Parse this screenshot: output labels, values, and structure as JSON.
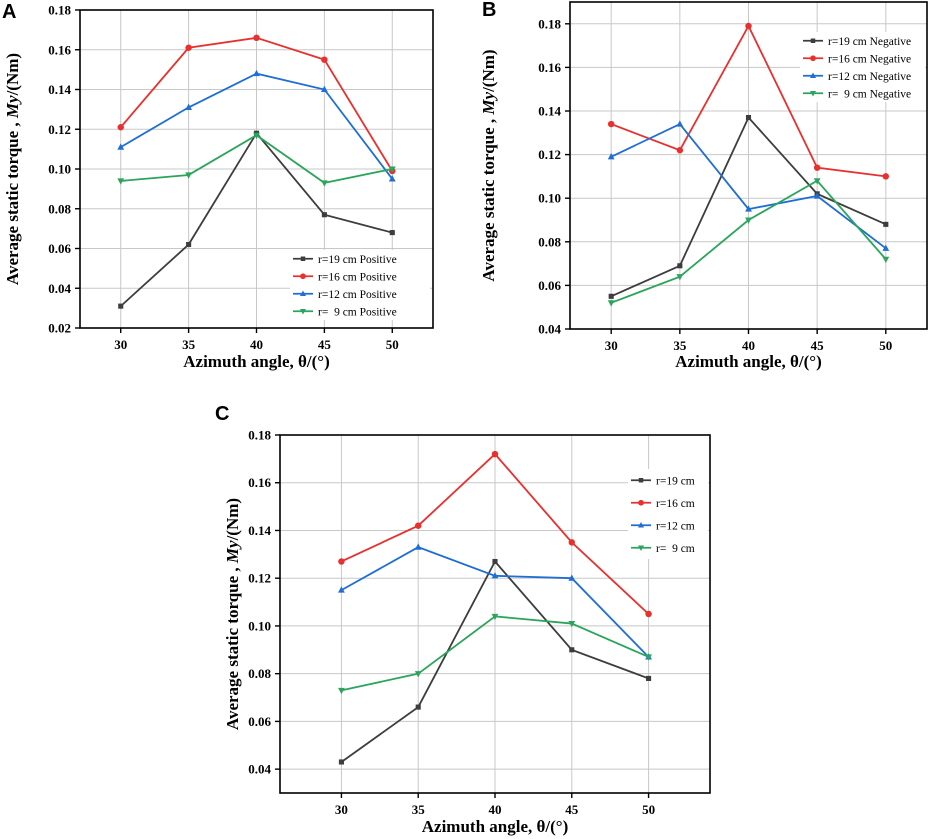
{
  "chart_data": [
    {
      "panel": "A",
      "type": "line",
      "xlabel": "Azimuth angle, θ/(°)",
      "ylabel_parts": [
        "Average static torque , ",
        "My",
        "/(Nm)"
      ],
      "x": [
        30,
        35,
        40,
        45,
        50
      ],
      "xlim": [
        27,
        53
      ],
      "ylim": [
        0.02,
        0.18
      ],
      "yticks": [
        0.02,
        0.04,
        0.06,
        0.08,
        0.1,
        0.12,
        0.14,
        0.16,
        0.18
      ],
      "ytick_labels": [
        "0.02",
        "0.04",
        "0.06",
        "0.08",
        "0.10",
        "0.12",
        "0.14",
        "0.16",
        "0.18"
      ],
      "xtick_labels": [
        "30",
        "35",
        "40",
        "45",
        "50"
      ],
      "grid": true,
      "legend_position": "bottom-right",
      "series": [
        {
          "name": "r=19 cm Positive",
          "color": "#3d3d3d",
          "marker": "square",
          "values": [
            0.031,
            0.062,
            0.118,
            0.077,
            0.068
          ]
        },
        {
          "name": "r=16 cm Positive",
          "color": "#e8302e",
          "marker": "circle",
          "values": [
            0.121,
            0.161,
            0.166,
            0.155,
            0.099
          ]
        },
        {
          "name": "r=12 cm Positive",
          "color": "#1f6ed4",
          "marker": "triangle-up",
          "values": [
            0.111,
            0.131,
            0.148,
            0.14,
            0.095
          ]
        },
        {
          "name": "r=  9 cm Positive",
          "color": "#2aa55b",
          "marker": "triangle-down",
          "values": [
            0.094,
            0.097,
            0.117,
            0.093,
            0.1
          ]
        }
      ]
    },
    {
      "panel": "B",
      "type": "line",
      "xlabel": "Azimuth angle, θ/(°)",
      "ylabel_parts": [
        "Average static torque , ",
        "My",
        "/(Nm)"
      ],
      "x": [
        30,
        35,
        40,
        45,
        50
      ],
      "xlim": [
        27,
        53
      ],
      "ylim": [
        0.04,
        0.19
      ],
      "yticks": [
        0.04,
        0.06,
        0.08,
        0.1,
        0.12,
        0.14,
        0.16,
        0.18
      ],
      "ytick_labels": [
        "0.04",
        "0.06",
        "0.08",
        "0.10",
        "0.12",
        "0.14",
        "0.16",
        "0.18"
      ],
      "xtick_labels": [
        "30",
        "35",
        "40",
        "45",
        "50"
      ],
      "grid": true,
      "legend_position": "top-right",
      "series": [
        {
          "name": "r=19 cm Negative",
          "color": "#3d3d3d",
          "marker": "square",
          "values": [
            0.055,
            0.069,
            0.137,
            0.102,
            0.088
          ]
        },
        {
          "name": "r=16 cm Negative",
          "color": "#e8302e",
          "marker": "circle",
          "values": [
            0.134,
            0.122,
            0.179,
            0.114,
            0.11
          ]
        },
        {
          "name": "r=12 cm Negative",
          "color": "#1f6ed4",
          "marker": "triangle-up",
          "values": [
            0.119,
            0.134,
            0.095,
            0.101,
            0.077
          ]
        },
        {
          "name": "r=  9 cm Negative",
          "color": "#2aa55b",
          "marker": "triangle-down",
          "values": [
            0.052,
            0.064,
            0.09,
            0.108,
            0.072
          ]
        }
      ]
    },
    {
      "panel": "C",
      "type": "line",
      "xlabel": "Azimuth angle, θ/(°)",
      "ylabel_parts": [
        "Average static torque , ",
        "My",
        "/(Nm)"
      ],
      "x": [
        30,
        35,
        40,
        45,
        50
      ],
      "xlim": [
        26,
        54
      ],
      "ylim": [
        0.03,
        0.18
      ],
      "yticks": [
        0.04,
        0.06,
        0.08,
        0.1,
        0.12,
        0.14,
        0.16,
        0.18
      ],
      "ytick_labels": [
        "0.04",
        "0.06",
        "0.08",
        "0.10",
        "0.12",
        "0.14",
        "0.16",
        "0.18"
      ],
      "xtick_labels": [
        "30",
        "35",
        "40",
        "45",
        "50"
      ],
      "grid": true,
      "legend_position": "top-right",
      "series": [
        {
          "name": "r=19 cm",
          "color": "#3d3d3d",
          "marker": "square",
          "values": [
            0.043,
            0.066,
            0.127,
            0.09,
            0.078
          ]
        },
        {
          "name": "r=16 cm",
          "color": "#e8302e",
          "marker": "circle",
          "values": [
            0.127,
            0.142,
            0.172,
            0.135,
            0.105
          ]
        },
        {
          "name": "r=12 cm",
          "color": "#1f6ed4",
          "marker": "triangle-up",
          "values": [
            0.115,
            0.133,
            0.121,
            0.12,
            0.087
          ]
        },
        {
          "name": "r=  9 cm",
          "color": "#2aa55b",
          "marker": "triangle-down",
          "values": [
            0.073,
            0.08,
            0.104,
            0.101,
            0.087
          ]
        }
      ]
    }
  ]
}
